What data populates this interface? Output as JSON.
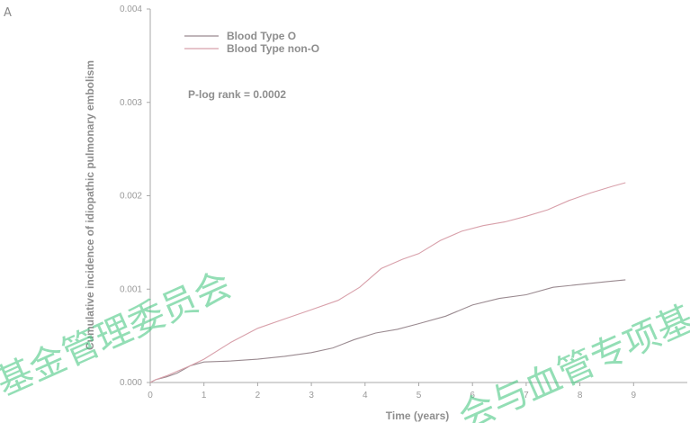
{
  "panel_label": "A",
  "watermarks": [
    "基金管理委员会",
    "会与血管专项基"
  ],
  "chart_data": {
    "type": "line",
    "title": "",
    "xlabel": "Time (years)",
    "ylabel": "Cumulative incidence of idiopathic pulmonary embolism",
    "xlim": [
      0,
      10
    ],
    "ylim": [
      0,
      0.004
    ],
    "x_ticks": [
      0,
      1,
      2,
      3,
      4,
      5,
      6,
      7,
      8,
      9
    ],
    "x_tick_labels": [
      "0",
      "1",
      "2",
      "3",
      "4",
      "5",
      "6",
      "7",
      "8",
      "9"
    ],
    "y_ticks": [
      0,
      0.001,
      0.002,
      0.003,
      0.004
    ],
    "y_tick_labels": [
      "0.000",
      "0.001",
      "0.002",
      "0.003",
      "0.004"
    ],
    "grid": false,
    "legend_position": "top-left",
    "annotation": "P-log rank = 0.0002",
    "series": [
      {
        "name": "Blood Type O",
        "color": "#9a8a90",
        "points": [
          [
            0,
            0
          ],
          [
            0.1,
            3e-05
          ],
          [
            0.3,
            6e-05
          ],
          [
            0.5,
            0.0001
          ],
          [
            0.75,
            0.00018
          ],
          [
            1.0,
            0.00022
          ],
          [
            1.5,
            0.00023
          ],
          [
            2.0,
            0.00025
          ],
          [
            2.5,
            0.00028
          ],
          [
            3.0,
            0.00032
          ],
          [
            3.4,
            0.00037
          ],
          [
            3.8,
            0.00046
          ],
          [
            4.2,
            0.00053
          ],
          [
            4.6,
            0.00057
          ],
          [
            5.0,
            0.00063
          ],
          [
            5.5,
            0.00071
          ],
          [
            6.0,
            0.00083
          ],
          [
            6.5,
            0.0009
          ],
          [
            7.0,
            0.00094
          ],
          [
            7.5,
            0.00102
          ],
          [
            8.0,
            0.00105
          ],
          [
            8.5,
            0.00108
          ],
          [
            8.85,
            0.0011
          ]
        ]
      },
      {
        "name": "Blood Type non-O",
        "color": "#d8a0aa",
        "points": [
          [
            0,
            0
          ],
          [
            0.1,
            3e-05
          ],
          [
            0.3,
            7e-05
          ],
          [
            0.5,
            0.00012
          ],
          [
            0.75,
            0.00018
          ],
          [
            1.0,
            0.00025
          ],
          [
            1.5,
            0.00043
          ],
          [
            2.0,
            0.00058
          ],
          [
            2.5,
            0.00068
          ],
          [
            3.0,
            0.00078
          ],
          [
            3.5,
            0.00088
          ],
          [
            3.9,
            0.00102
          ],
          [
            4.3,
            0.00122
          ],
          [
            4.7,
            0.00132
          ],
          [
            5.0,
            0.00138
          ],
          [
            5.4,
            0.00152
          ],
          [
            5.8,
            0.00162
          ],
          [
            6.2,
            0.00168
          ],
          [
            6.6,
            0.00172
          ],
          [
            7.0,
            0.00178
          ],
          [
            7.4,
            0.00185
          ],
          [
            7.8,
            0.00195
          ],
          [
            8.2,
            0.00203
          ],
          [
            8.6,
            0.0021
          ],
          [
            8.85,
            0.00214
          ]
        ]
      }
    ]
  }
}
